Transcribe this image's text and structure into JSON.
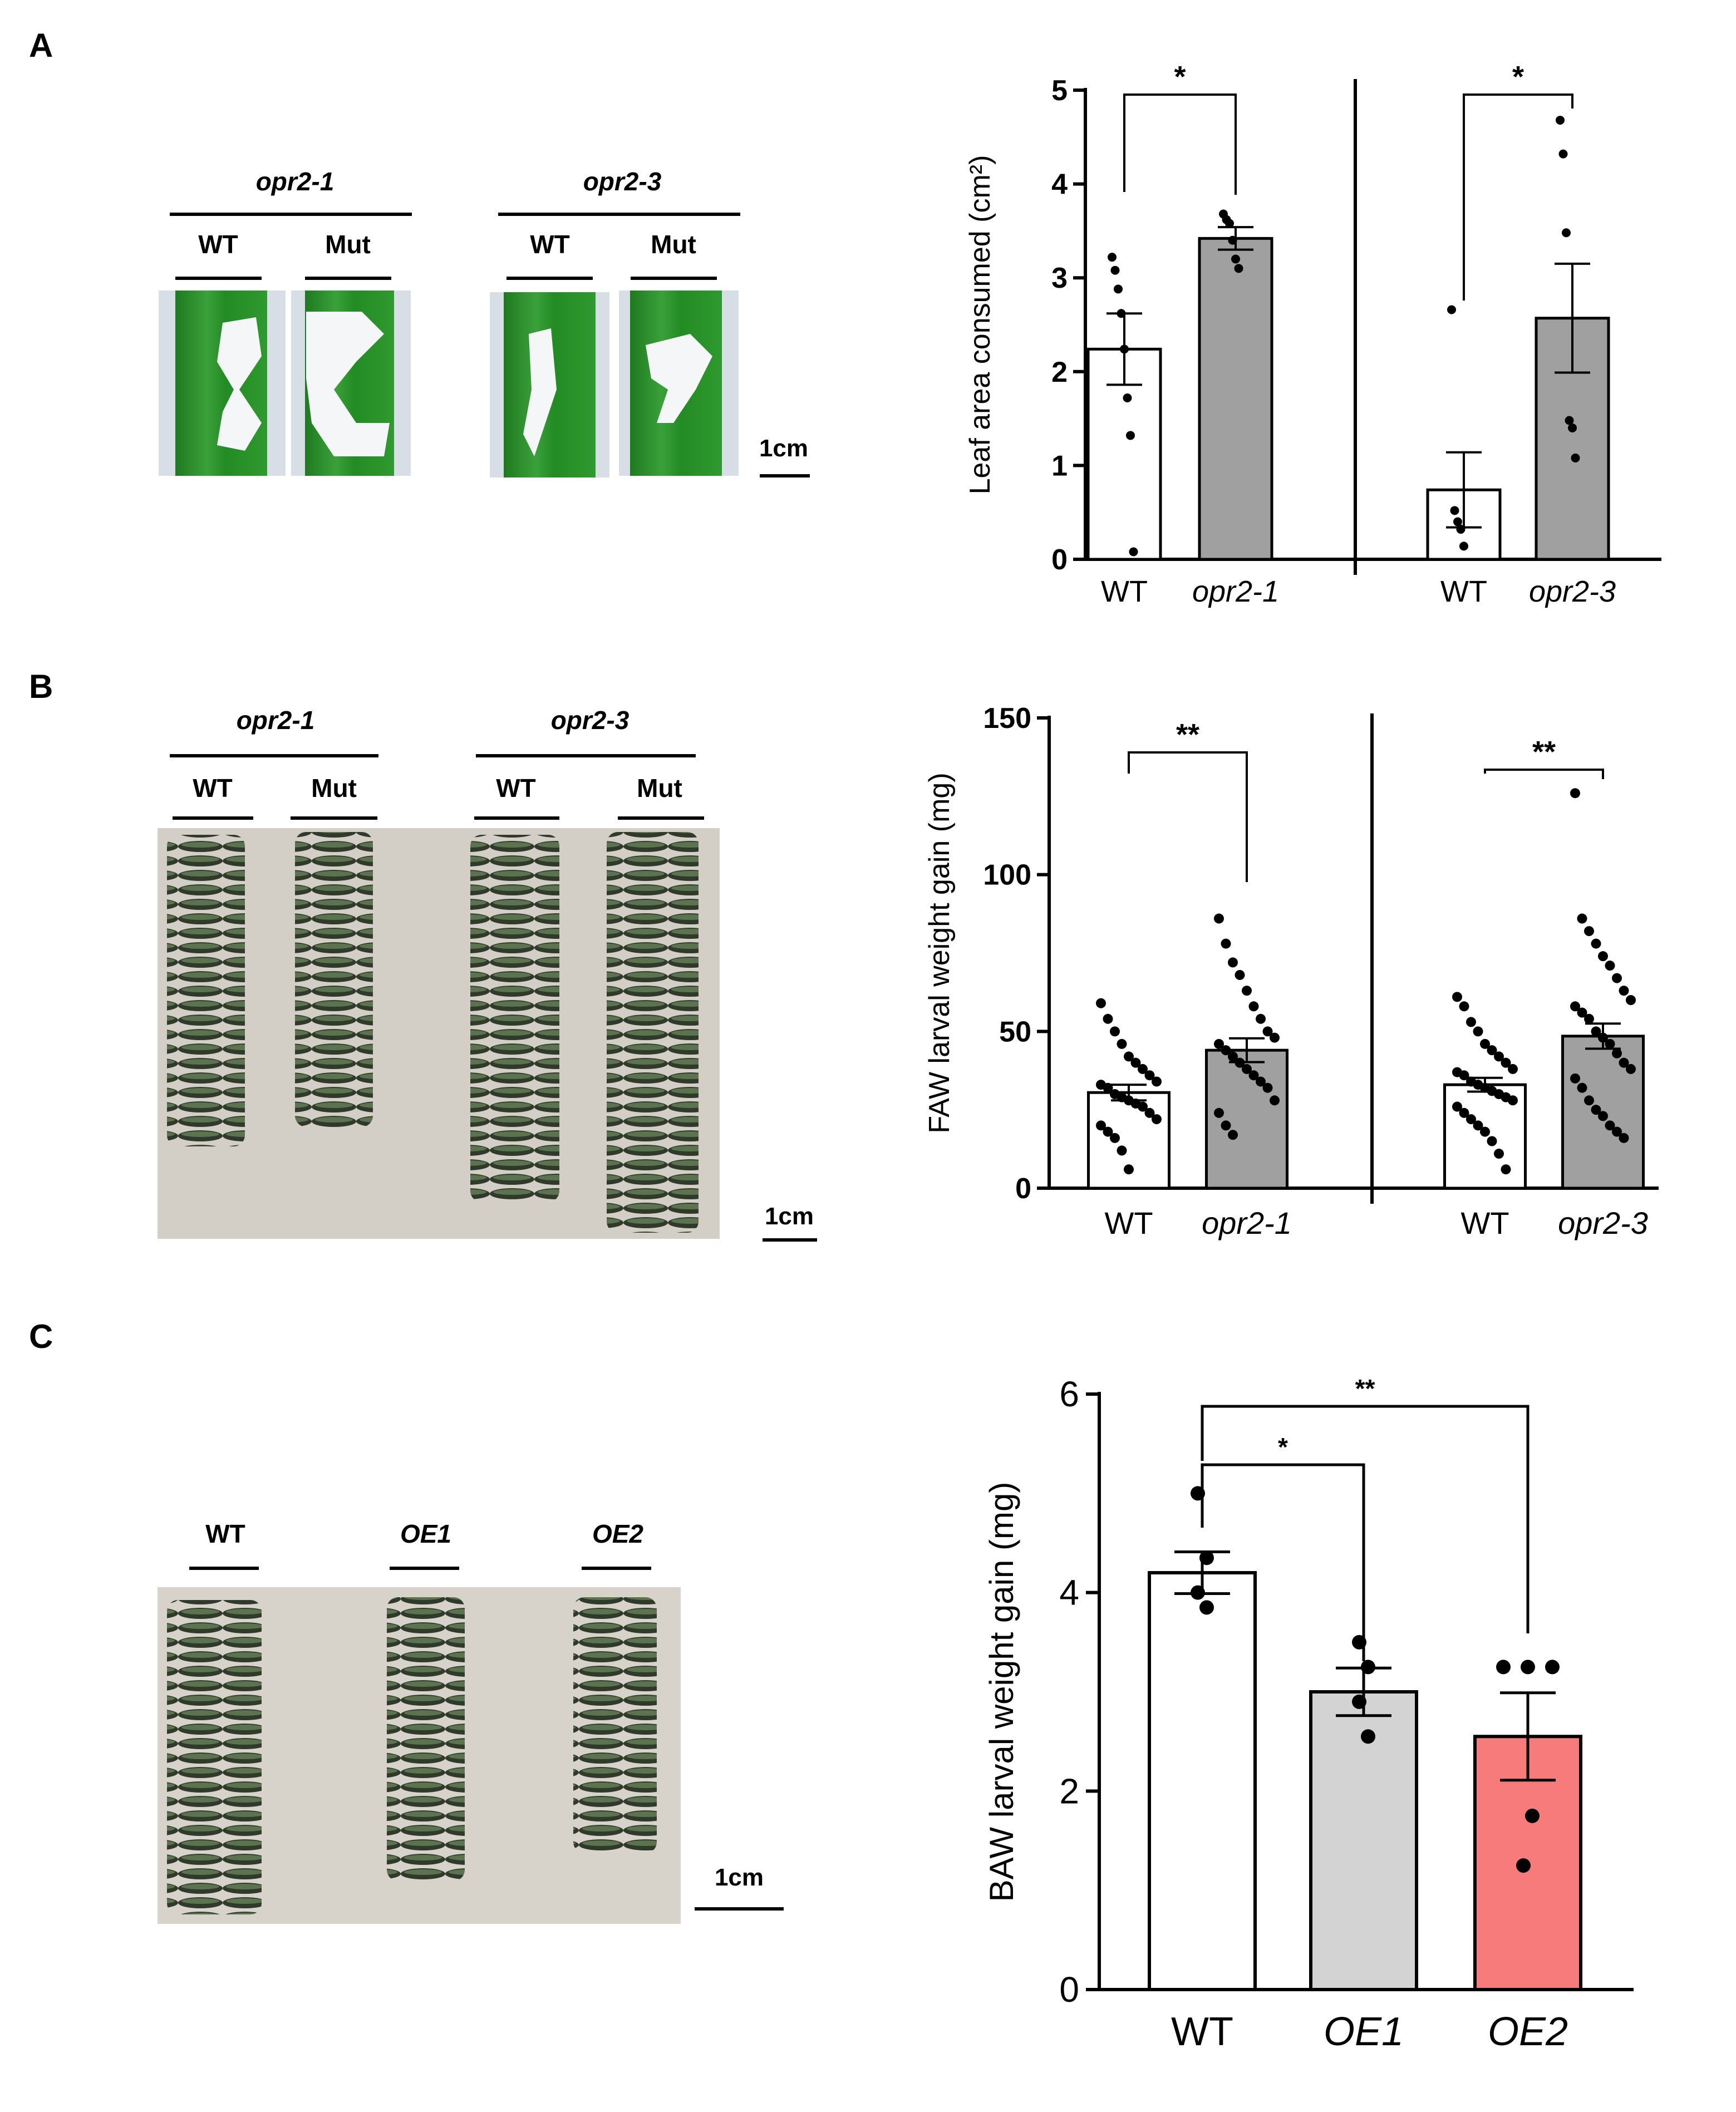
{
  "panels": [
    {
      "letter": "A",
      "photo": {
        "groups": [
          {
            "label": "opr2-1",
            "columns": [
              "WT",
              "Mut"
            ]
          },
          {
            "label": "opr2-3",
            "columns": [
              "WT",
              "Mut"
            ]
          }
        ],
        "scale_label": "1cm"
      }
    },
    {
      "letter": "B",
      "photo": {
        "groups": [
          {
            "label": "opr2-1",
            "columns": [
              "WT",
              "Mut"
            ]
          },
          {
            "label": "opr2-3",
            "columns": [
              "WT",
              "Mut"
            ]
          }
        ],
        "scale_label": "1cm"
      }
    },
    {
      "letter": "C",
      "photo": {
        "columns": [
          "WT",
          "OE1",
          "OE2"
        ],
        "scale_label": "1cm"
      }
    }
  ],
  "chart_data": [
    {
      "panel": "A",
      "type": "bar",
      "ylabel": "Leaf area consumed  (cm²)",
      "ylim": [
        0,
        5
      ],
      "yticks": [
        0,
        1,
        2,
        3,
        4,
        5
      ],
      "groups": [
        {
          "bars": [
            {
              "category": "WT",
              "italic": false,
              "value": 2.24,
              "sem": 0.38,
              "color": "#ffffff",
              "points": [
                3.22,
                3.08,
                2.88,
                2.62,
                2.24,
                1.72,
                1.32,
                0.08
              ]
            },
            {
              "category": "opr2-1",
              "italic": true,
              "value": 3.42,
              "sem": 0.12,
              "color": "#a0a0a0",
              "points": [
                3.68,
                3.62,
                3.58,
                3.4,
                3.2,
                3.1
              ]
            }
          ],
          "significance": "*"
        },
        {
          "bars": [
            {
              "category": "WT",
              "italic": false,
              "value": 0.74,
              "sem": 0.4,
              "color": "#ffffff",
              "points": [
                2.66,
                0.52,
                0.4,
                0.32,
                0.14
              ]
            },
            {
              "category": "opr2-3",
              "italic": true,
              "value": 2.57,
              "sem": 0.58,
              "color": "#a0a0a0",
              "points": [
                4.68,
                4.32,
                3.48,
                1.48,
                1.4,
                1.08
              ]
            }
          ],
          "significance": "*"
        }
      ]
    },
    {
      "panel": "B",
      "type": "bar",
      "ylabel": "FAW larval weight gain (mg)",
      "ylim": [
        0,
        150
      ],
      "yticks": [
        0,
        50,
        100,
        150
      ],
      "groups": [
        {
          "bars": [
            {
              "category": "WT",
              "italic": false,
              "value": 30.5,
              "sem": 2.5,
              "color": "#ffffff",
              "points": [
                59,
                54,
                50,
                46,
                42,
                40,
                38,
                36,
                34,
                33,
                32,
                30,
                29,
                28,
                27,
                26,
                24,
                22,
                20,
                18,
                16,
                12,
                6
              ]
            },
            {
              "category": "opr2-1",
              "italic": true,
              "value": 44,
              "sem": 3.8,
              "color": "#a0a0a0",
              "points": [
                86,
                78,
                72,
                68,
                63,
                58,
                54,
                50,
                48,
                46,
                44,
                42,
                40,
                38,
                36,
                34,
                32,
                28,
                24,
                20,
                17
              ]
            }
          ],
          "significance": "**"
        },
        {
          "bars": [
            {
              "category": "WT",
              "italic": false,
              "value": 33,
              "sem": 2.2,
              "color": "#ffffff",
              "points": [
                61,
                58,
                53,
                50,
                46,
                44,
                42,
                40,
                38,
                37,
                36,
                34,
                33,
                32,
                31,
                30,
                29,
                28,
                26,
                24,
                22,
                20,
                18,
                15,
                11,
                6
              ]
            },
            {
              "category": "opr2-3",
              "italic": true,
              "value": 48.5,
              "sem": 4.0,
              "color": "#a0a0a0",
              "points": [
                126,
                86,
                82,
                78,
                74,
                71,
                67,
                63,
                60,
                58,
                56,
                54,
                50,
                48,
                46,
                43,
                40,
                38,
                35,
                32,
                28,
                25,
                23,
                20,
                18,
                16
              ]
            }
          ],
          "significance": "**"
        }
      ]
    },
    {
      "panel": "C",
      "type": "bar",
      "ylabel": "BAW larval weight gain (mg)",
      "ylim": [
        0,
        6
      ],
      "yticks": [
        0,
        2,
        4,
        6
      ],
      "bars": [
        {
          "category": "WT",
          "italic": false,
          "value": 4.2,
          "sem": 0.21,
          "color": "#ffffff",
          "points": [
            5.0,
            4.35,
            4.0,
            3.85
          ]
        },
        {
          "category": "OE1",
          "italic": true,
          "value": 3.0,
          "sem": 0.24,
          "color": "#d3d3d3",
          "points": [
            3.5,
            3.25,
            2.9,
            2.55
          ]
        },
        {
          "category": "OE2",
          "italic": true,
          "value": 2.55,
          "sem": 0.44,
          "color": "#f77b7b",
          "points": [
            3.25,
            3.25,
            3.25,
            1.75,
            1.25
          ]
        }
      ],
      "comparisons": [
        {
          "from": 0,
          "to": 1,
          "label": "*"
        },
        {
          "from": 0,
          "to": 2,
          "label": "**"
        }
      ]
    }
  ]
}
